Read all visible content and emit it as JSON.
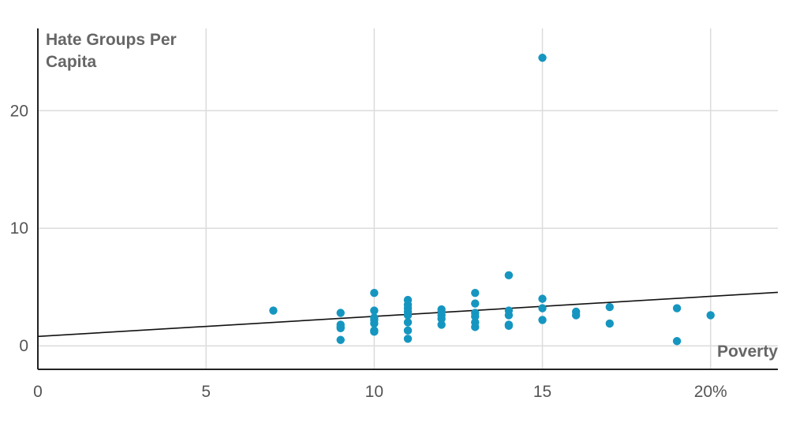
{
  "chart_data": {
    "type": "scatter",
    "ylabel_lines": [
      "Hate Groups Per",
      "Capita"
    ],
    "xlabel": "Poverty",
    "x_ticks": [
      {
        "value": 0,
        "label": "0"
      },
      {
        "value": 5,
        "label": "5"
      },
      {
        "value": 10,
        "label": "10"
      },
      {
        "value": 15,
        "label": "15"
      },
      {
        "value": 20,
        "label": "20%"
      }
    ],
    "y_ticks": [
      {
        "value": 0,
        "label": "0"
      },
      {
        "value": 10,
        "label": "10"
      },
      {
        "value": 20,
        "label": "20"
      }
    ],
    "xlim": [
      0,
      22
    ],
    "ylim": [
      -2,
      27
    ],
    "grid": true,
    "point_color": "#1596c0",
    "trendline": {
      "x": [
        0,
        22
      ],
      "y": [
        0.8,
        4.55
      ],
      "color": "#111111"
    },
    "points": [
      [
        7,
        3.0
      ],
      [
        9,
        2.8
      ],
      [
        9,
        1.8
      ],
      [
        9,
        1.6
      ],
      [
        9,
        1.5
      ],
      [
        9,
        0.5
      ],
      [
        10,
        4.5
      ],
      [
        10,
        3.0
      ],
      [
        10,
        2.4
      ],
      [
        10,
        2.2
      ],
      [
        10,
        1.9
      ],
      [
        10,
        1.3
      ],
      [
        10,
        1.2
      ],
      [
        11,
        3.9
      ],
      [
        11,
        3.5
      ],
      [
        11,
        3.2
      ],
      [
        11,
        2.9
      ],
      [
        11,
        2.6
      ],
      [
        11,
        2.0
      ],
      [
        11,
        1.3
      ],
      [
        11,
        0.6
      ],
      [
        12,
        3.1
      ],
      [
        12,
        2.9
      ],
      [
        12,
        2.6
      ],
      [
        12,
        2.3
      ],
      [
        12,
        1.8
      ],
      [
        13,
        4.5
      ],
      [
        13,
        3.6
      ],
      [
        13,
        2.8
      ],
      [
        13,
        2.5
      ],
      [
        13,
        2.0
      ],
      [
        13,
        1.6
      ],
      [
        14,
        6.0
      ],
      [
        14,
        3.0
      ],
      [
        14,
        2.6
      ],
      [
        14,
        1.8
      ],
      [
        14,
        1.7
      ],
      [
        15,
        24.5
      ],
      [
        15,
        4.0
      ],
      [
        15,
        3.2
      ],
      [
        15,
        2.2
      ],
      [
        16,
        2.9
      ],
      [
        16,
        2.6
      ],
      [
        17,
        3.3
      ],
      [
        17,
        1.9
      ],
      [
        19,
        3.2
      ],
      [
        19,
        0.4
      ],
      [
        20,
        2.6
      ]
    ]
  }
}
